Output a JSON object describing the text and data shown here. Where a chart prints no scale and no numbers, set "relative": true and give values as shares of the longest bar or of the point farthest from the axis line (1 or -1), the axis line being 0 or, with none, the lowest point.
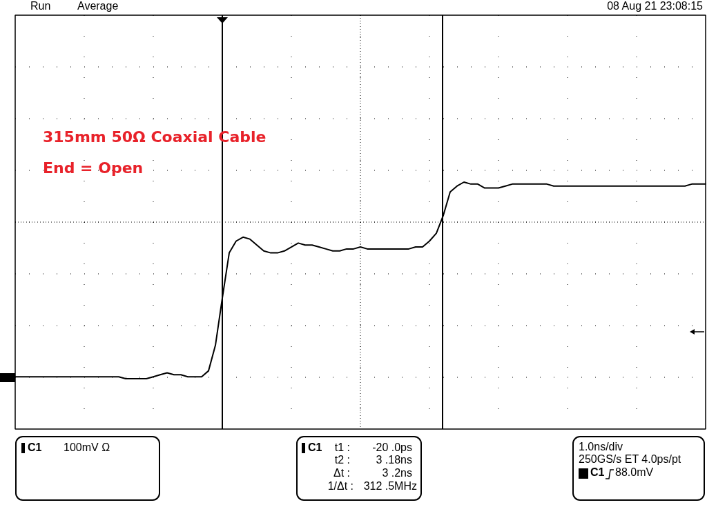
{
  "chart_data": {
    "type": "line",
    "title": "315mm 50Ω Coaxial Cable",
    "subtitle": "End = Open",
    "relative": true,
    "grid": true,
    "marker": "none",
    "line_style": "solid",
    "categories": [
      null,
      null,
      null,
      null,
      null,
      null,
      null,
      null,
      null,
      null,
      null,
      null,
      null,
      null,
      null,
      null,
      null,
      null,
      null,
      null,
      null,
      null,
      null,
      null,
      null,
      null,
      null,
      null,
      null,
      null,
      null,
      null,
      null,
      null,
      null,
      null,
      null,
      null,
      null,
      null,
      null,
      null,
      null,
      null,
      null,
      null,
      null,
      null,
      null,
      null,
      null,
      null,
      null,
      null,
      null,
      null,
      null,
      null,
      null,
      null,
      null,
      null,
      null,
      null,
      null,
      null,
      null,
      null,
      null,
      null,
      null,
      null,
      null,
      null,
      null,
      null,
      null,
      null,
      null,
      null,
      null,
      null,
      null,
      null,
      null,
      null,
      null,
      null,
      null,
      null,
      null,
      null,
      null,
      null,
      null,
      null,
      null,
      null,
      null,
      null,
      null
    ],
    "series": [
      {
        "color": "#000000",
        "values": [
          0.01,
          0.01,
          0.01,
          0.01,
          0.01,
          0.01,
          0.01,
          0.01,
          0.01,
          0.01,
          0.01,
          0.01,
          0.01,
          0.01,
          0.01,
          0.01,
          0.0,
          0,
          0,
          0,
          0.01,
          0.02,
          0.03,
          0.02,
          0.02,
          0.01,
          0.01,
          0.01,
          0.04,
          0.17,
          0.41,
          0.64,
          0.7,
          0.72,
          0.71,
          0.68,
          0.65,
          0.64,
          0.64,
          0.65,
          0.67,
          0.69,
          0.68,
          0.68,
          0.67,
          0.66,
          0.65,
          0.65,
          0.66,
          0.66,
          0.67,
          0.66,
          0.66,
          0.66,
          0.66,
          0.66,
          0.66,
          0.66,
          0.67,
          0.67,
          0.7,
          0.74,
          0.83,
          0.95,
          0.98,
          1,
          0.99,
          0.99,
          0.97,
          0.97,
          0.97,
          0.98,
          0.99,
          0.99,
          0.99,
          0.99,
          0.99,
          0.99,
          0.98,
          0.98,
          0.98,
          0.98,
          0.98,
          0.98,
          0.98,
          0.98,
          0.98,
          0.98,
          0.98,
          0.98,
          0.98,
          0.98,
          0.98,
          0.98,
          0.98,
          0.98,
          0.98,
          0.98,
          0.99,
          0.99,
          0.99
        ]
      }
    ],
    "annotations": [
      "Run",
      "Average",
      "08 Aug 21 23:08:15",
      "C1",
      "100mV Ω",
      "C1",
      "t1 :",
      "-20 .0ps",
      "t2 :",
      "3 .18ns",
      "Δt :",
      "3 .2ns",
      "1/Δt :",
      "312 .5MHz",
      "1.0ns/div",
      "250GS/s ET 4.0ps/pt",
      "C1",
      "88.0mV"
    ]
  }
}
